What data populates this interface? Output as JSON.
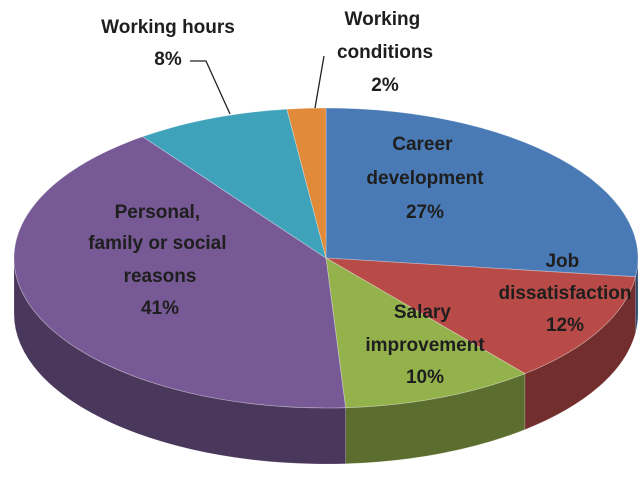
{
  "chart_data": {
    "type": "pie",
    "categories": [
      "Career development",
      "Job dissatisfaction",
      "Salary improvement",
      "Personal, family or social reasons",
      "Working hours",
      "Working conditions"
    ],
    "values": [
      27,
      12,
      10,
      41,
      8,
      2
    ],
    "value_labels": [
      "27%",
      "12%",
      "10%",
      "41%",
      "8%",
      "2%"
    ],
    "colors": [
      "#4a7ab5",
      "#b84a47",
      "#94b24c",
      "#775a95",
      "#3fa2bb",
      "#e08a3a"
    ]
  }
}
